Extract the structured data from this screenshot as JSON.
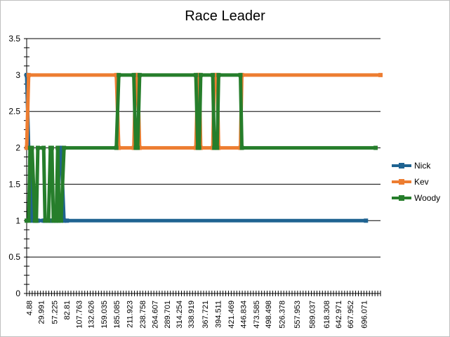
{
  "chart_data": {
    "type": "line",
    "title": "Race Leader",
    "xlabel": "",
    "ylabel": "",
    "ylim": [
      0,
      3.5
    ],
    "y_ticks": [
      "0",
      "0.5",
      "1",
      "1.5",
      "2",
      "2.5",
      "3",
      "3.5"
    ],
    "x_ticks": [
      4.88,
      29.991,
      57.225,
      82.81,
      107.763,
      132.626,
      159.035,
      185.085,
      211.923,
      238.758,
      264.607,
      289.701,
      314.254,
      338.919,
      367.721,
      394.511,
      421.469,
      446.834,
      473.585,
      498.498,
      526.378,
      557.953,
      589.037,
      618.308,
      642.971,
      667.952,
      696.071
    ],
    "x_range": [
      0,
      730
    ],
    "grid": true,
    "legend_position": "right",
    "series": [
      {
        "name": "Nick",
        "color": "#1f6391",
        "points": [
          [
            0,
            3
          ],
          [
            4,
            2
          ],
          [
            7,
            2
          ],
          [
            11,
            1
          ],
          [
            17,
            1
          ],
          [
            20,
            1
          ],
          [
            23,
            1
          ],
          [
            35,
            1
          ],
          [
            38,
            1
          ],
          [
            45,
            1
          ],
          [
            49,
            1
          ],
          [
            52,
            1
          ],
          [
            55,
            1
          ],
          [
            61,
            1
          ],
          [
            64,
            1
          ],
          [
            67,
            2
          ],
          [
            71,
            2
          ],
          [
            77,
            1
          ],
          [
            83,
            1
          ],
          [
            700,
            1
          ]
        ]
      },
      {
        "name": "Kev",
        "color": "#ed7d31",
        "points": [
          [
            0,
            2
          ],
          [
            4,
            3
          ],
          [
            185,
            3
          ],
          [
            190,
            2
          ],
          [
            221,
            2
          ],
          [
            225,
            3
          ],
          [
            229,
            3
          ],
          [
            233,
            2
          ],
          [
            349,
            2
          ],
          [
            353,
            3
          ],
          [
            356,
            3
          ],
          [
            359,
            2
          ],
          [
            384,
            2
          ],
          [
            387,
            3
          ],
          [
            393,
            3
          ],
          [
            396,
            2
          ],
          [
            441,
            2
          ],
          [
            444,
            3
          ],
          [
            730,
            3
          ]
        ]
      },
      {
        "name": "Woody",
        "color": "#267e2b",
        "points": [
          [
            0,
            1
          ],
          [
            4,
            1
          ],
          [
            7,
            2
          ],
          [
            11,
            2
          ],
          [
            17,
            1
          ],
          [
            20,
            1
          ],
          [
            23,
            2
          ],
          [
            35,
            2
          ],
          [
            38,
            1
          ],
          [
            45,
            1
          ],
          [
            49,
            2
          ],
          [
            52,
            2
          ],
          [
            55,
            1
          ],
          [
            61,
            1
          ],
          [
            64,
            2
          ],
          [
            67,
            1
          ],
          [
            71,
            1
          ],
          [
            77,
            2
          ],
          [
            185,
            2
          ],
          [
            190,
            3
          ],
          [
            221,
            3
          ],
          [
            225,
            2
          ],
          [
            229,
            2
          ],
          [
            233,
            3
          ],
          [
            349,
            3
          ],
          [
            353,
            2
          ],
          [
            356,
            2
          ],
          [
            359,
            3
          ],
          [
            384,
            3
          ],
          [
            387,
            2
          ],
          [
            393,
            2
          ],
          [
            396,
            3
          ],
          [
            441,
            3
          ],
          [
            444,
            2
          ],
          [
            720,
            2
          ]
        ]
      }
    ]
  }
}
